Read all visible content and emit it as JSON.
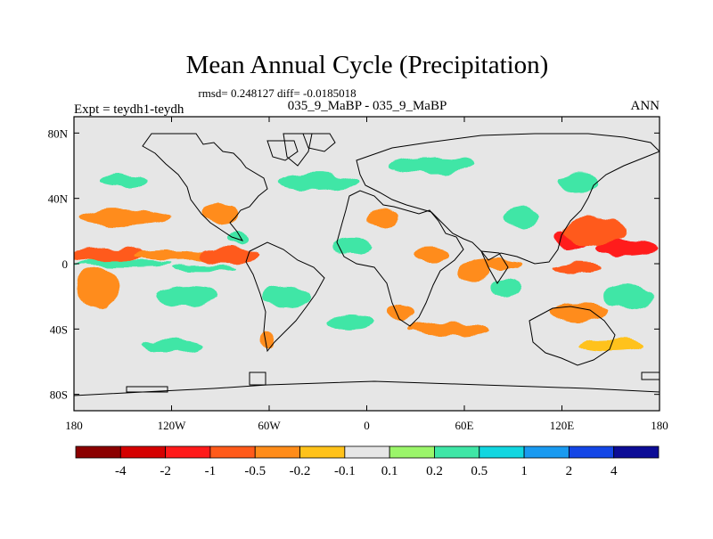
{
  "chart_data": {
    "type": "heatmap",
    "title": "Mean Annual Cycle (Precipitation)",
    "stats_text": "rmsd= 0.248127 diff= -0.0185018",
    "subtitle": "035_9_MaBP - 035_9_MaBP",
    "left_label": "Expt = teydh1-teydh",
    "right_label": "ANN",
    "x_axis": {
      "range": [
        -180,
        180
      ],
      "ticks": [
        {
          "value": -180,
          "label": "180"
        },
        {
          "value": -120,
          "label": "120W"
        },
        {
          "value": -60,
          "label": "60W"
        },
        {
          "value": 0,
          "label": "0"
        },
        {
          "value": 60,
          "label": "60E"
        },
        {
          "value": 120,
          "label": "120E"
        },
        {
          "value": 180,
          "label": "180"
        }
      ]
    },
    "y_axis": {
      "range": [
        -90,
        90
      ],
      "ticks": [
        {
          "value": 80,
          "label": "80N"
        },
        {
          "value": 40,
          "label": "40N"
        },
        {
          "value": 0,
          "label": "0"
        },
        {
          "value": -40,
          "label": "40S"
        },
        {
          "value": -80,
          "label": "80S"
        }
      ]
    },
    "colorbar": {
      "colors": [
        "#8b0000",
        "#d40000",
        "#ff1a1a",
        "#ff5a1a",
        "#ff8c1a",
        "#ffc21a",
        "#e6e6e6",
        "#9bf56a",
        "#3fe6a6",
        "#12d6e0",
        "#1a9af0",
        "#1446e6",
        "#0c0c96"
      ],
      "labels": [
        "-4",
        "-2",
        "-1",
        "-0.5",
        "-0.2",
        "-0.1",
        "0.1",
        "0.2",
        "0.5",
        "1",
        "2",
        "4"
      ]
    },
    "anomaly_regions": [
      {
        "lon": -160,
        "lat": 5,
        "rlon": 22,
        "rlat": 4,
        "v": -0.7
      },
      {
        "lon": -120,
        "lat": 5,
        "rlon": 25,
        "rlat": 3,
        "v": -0.5
      },
      {
        "lon": -85,
        "lat": 5,
        "rlon": 18,
        "rlat": 4,
        "v": -0.6
      },
      {
        "lon": -150,
        "lat": 0,
        "rlon": 30,
        "rlat": 2,
        "v": 0.3
      },
      {
        "lon": -100,
        "lat": -2,
        "rlon": 20,
        "rlat": 2,
        "v": 0.25
      },
      {
        "lon": -150,
        "lat": 28,
        "rlon": 28,
        "rlat": 5,
        "v": -0.4
      },
      {
        "lon": -90,
        "lat": 30,
        "rlon": 12,
        "rlat": 6,
        "v": -0.3
      },
      {
        "lon": -165,
        "lat": -15,
        "rlon": 14,
        "rlat": 12,
        "v": -0.35
      },
      {
        "lon": -110,
        "lat": -20,
        "rlon": 18,
        "rlat": 6,
        "v": 0.3
      },
      {
        "lon": -50,
        "lat": -20,
        "rlon": 15,
        "rlat": 7,
        "v": 0.25
      },
      {
        "lon": -62,
        "lat": -48,
        "rlon": 4,
        "rlat": 5,
        "v": -0.3
      },
      {
        "lon": -30,
        "lat": 50,
        "rlon": 25,
        "rlat": 5,
        "v": 0.2
      },
      {
        "lon": 40,
        "lat": 60,
        "rlon": 25,
        "rlat": 5,
        "v": 0.2
      },
      {
        "lon": 10,
        "lat": 28,
        "rlon": 10,
        "rlat": 6,
        "v": -0.25
      },
      {
        "lon": 40,
        "lat": 5,
        "rlon": 10,
        "rlat": 4,
        "v": -0.4
      },
      {
        "lon": 65,
        "lat": -5,
        "rlon": 10,
        "rlat": 6,
        "v": -0.5
      },
      {
        "lon": 85,
        "lat": -15,
        "rlon": 10,
        "rlat": 6,
        "v": 0.3
      },
      {
        "lon": 80,
        "lat": 0,
        "rlon": 15,
        "rlat": 3,
        "v": -0.3
      },
      {
        "lon": 125,
        "lat": 15,
        "rlon": 10,
        "rlat": 6,
        "v": -1.5
      },
      {
        "lon": 160,
        "lat": 10,
        "rlon": 20,
        "rlat": 5,
        "v": -1.2
      },
      {
        "lon": 140,
        "lat": 20,
        "rlon": 20,
        "rlat": 8,
        "v": -0.6
      },
      {
        "lon": 130,
        "lat": -2,
        "rlon": 15,
        "rlat": 3,
        "v": -0.8
      },
      {
        "lon": 95,
        "lat": 28,
        "rlon": 12,
        "rlat": 6,
        "v": 0.3
      },
      {
        "lon": 160,
        "lat": -20,
        "rlon": 15,
        "rlat": 8,
        "v": 0.3
      },
      {
        "lon": 130,
        "lat": -30,
        "rlon": 18,
        "rlat": 6,
        "v": -0.3
      },
      {
        "lon": 50,
        "lat": -40,
        "rlon": 25,
        "rlat": 4,
        "v": -0.3
      },
      {
        "lon": -10,
        "lat": -35,
        "rlon": 15,
        "rlat": 5,
        "v": 0.2
      },
      {
        "lon": 20,
        "lat": -30,
        "rlon": 8,
        "rlat": 5,
        "v": -0.3
      },
      {
        "lon": 130,
        "lat": 50,
        "rlon": 12,
        "rlat": 5,
        "v": 0.25
      },
      {
        "lon": -150,
        "lat": 50,
        "rlon": 15,
        "rlat": 4,
        "v": 0.2
      },
      {
        "lon": -80,
        "lat": 15,
        "rlon": 8,
        "rlat": 4,
        "v": 0.3
      },
      {
        "lon": -10,
        "lat": 10,
        "rlon": 12,
        "rlat": 4,
        "v": 0.2
      },
      {
        "lon": 150,
        "lat": -50,
        "rlon": 20,
        "rlat": 4,
        "v": -0.2
      },
      {
        "lon": -120,
        "lat": -50,
        "rlon": 20,
        "rlat": 4,
        "v": 0.2
      }
    ]
  }
}
